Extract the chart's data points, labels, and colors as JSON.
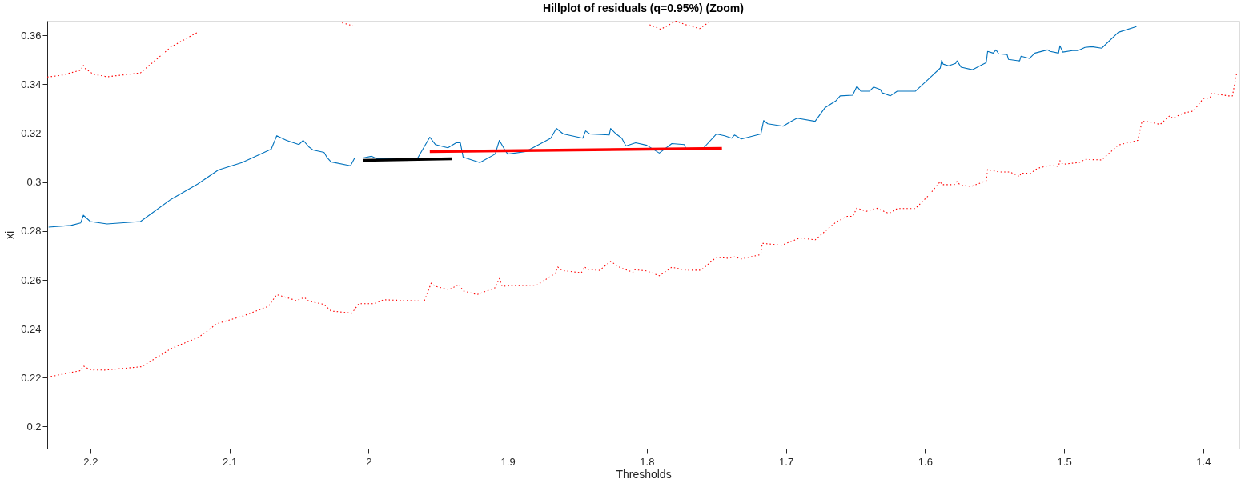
{
  "chart_data": {
    "type": "line",
    "title": "Hillplot of residuals (q=0.95%) (Zoom)",
    "xlabel": "Thresholds",
    "ylabel": "xi",
    "xlim": [
      2.231,
      1.374
    ],
    "ylim": [
      0.191,
      0.366
    ],
    "xticks": [
      2.2,
      2.1,
      2,
      1.9,
      1.8,
      1.7,
      1.6,
      1.5,
      1.4
    ],
    "yticks": [
      0.2,
      0.22,
      0.24,
      0.26,
      0.28,
      0.3,
      0.32,
      0.34,
      0.36
    ],
    "grid": false,
    "marker": "none",
    "series": [
      {
        "color": "#0072bd",
        "line_style": "solid",
        "x": [
          2.23,
          2.214,
          2.207,
          2.205,
          2.2,
          2.188,
          2.164,
          2.142,
          2.123,
          2.108,
          2.091,
          2.07,
          2.066,
          2.059,
          2.05,
          2.047,
          2.043,
          2.04,
          2.032,
          2.03,
          2.027,
          2.013,
          2.01,
          2.004,
          1.998,
          1.994,
          1.965,
          1.956,
          1.952,
          1.943,
          1.937,
          1.934,
          1.932,
          1.92,
          1.909,
          1.906,
          1.902,
          1.9,
          1.887,
          1.869,
          1.865,
          1.86,
          1.846,
          1.844,
          1.841,
          1.827,
          1.826,
          1.822,
          1.818,
          1.815,
          1.808,
          1.8,
          1.791,
          1.782,
          1.773,
          1.772,
          1.76,
          1.75,
          1.744,
          1.739,
          1.737,
          1.732,
          1.718,
          1.716,
          1.713,
          1.702,
          1.697,
          1.692,
          1.679,
          1.672,
          1.664,
          1.661,
          1.652,
          1.649,
          1.646,
          1.64,
          1.637,
          1.632,
          1.631,
          1.625,
          1.62,
          1.607,
          1.597,
          1.589,
          1.588,
          1.587,
          1.583,
          1.578,
          1.577,
          1.574,
          1.566,
          1.556,
          1.555,
          1.551,
          1.549,
          1.547,
          1.541,
          1.54,
          1.532,
          1.531,
          1.525,
          1.521,
          1.512,
          1.51,
          1.504,
          1.503,
          1.501,
          1.494,
          1.49,
          1.485,
          1.48,
          1.473,
          1.461,
          1.448
        ],
        "values": [
          0.2816,
          0.2823,
          0.2833,
          0.2865,
          0.2839,
          0.2829,
          0.2839,
          0.293,
          0.2992,
          0.305,
          0.308,
          0.3135,
          0.319,
          0.3171,
          0.3154,
          0.3171,
          0.3145,
          0.3132,
          0.3122,
          0.3102,
          0.3083,
          0.3067,
          0.3099,
          0.3099,
          0.3106,
          0.3096,
          0.3096,
          0.3184,
          0.3154,
          0.3141,
          0.3161,
          0.3161,
          0.3102,
          0.308,
          0.3115,
          0.3171,
          0.3132,
          0.3115,
          0.3125,
          0.318,
          0.322,
          0.3197,
          0.318,
          0.321,
          0.3197,
          0.3193,
          0.322,
          0.3197,
          0.318,
          0.3148,
          0.3161,
          0.3151,
          0.3119,
          0.3158,
          0.3154,
          0.3138,
          0.3135,
          0.3197,
          0.319,
          0.318,
          0.3193,
          0.3177,
          0.3197,
          0.3252,
          0.3239,
          0.3229,
          0.3246,
          0.3262,
          0.3249,
          0.3304,
          0.3333,
          0.3353,
          0.3356,
          0.3392,
          0.3372,
          0.3372,
          0.3389,
          0.3379,
          0.3366,
          0.3353,
          0.3372,
          0.3372,
          0.3424,
          0.3467,
          0.3499,
          0.3483,
          0.3476,
          0.3486,
          0.3496,
          0.347,
          0.346,
          0.3489,
          0.3535,
          0.3528,
          0.3541,
          0.3525,
          0.3522,
          0.3502,
          0.3496,
          0.3515,
          0.3506,
          0.3528,
          0.3541,
          0.3535,
          0.3528,
          0.3558,
          0.3532,
          0.3538,
          0.3538,
          0.3551,
          0.3554,
          0.3548,
          0.3613,
          0.3636
        ]
      },
      {
        "color": "#ff0000",
        "line_style": "dotted",
        "x": [
          2.231,
          2.221,
          2.207,
          2.205,
          2.204,
          2.198,
          2.188,
          2.164,
          2.142,
          2.122,
          2.1,
          2.019,
          2.011,
          1.99,
          1.798,
          1.79,
          1.779,
          1.772,
          1.762,
          1.754
        ],
        "values": [
          0.343,
          0.3437,
          0.3458,
          0.3478,
          0.3466,
          0.3442,
          0.3431,
          0.3447,
          0.3553,
          0.3616,
          null,
          0.3652,
          0.3639,
          null,
          0.3644,
          0.3625,
          0.3659,
          0.3644,
          0.3628,
          0.3659
        ]
      },
      {
        "color": "#ff0000",
        "line_style": "dotted",
        "x": [
          2.231,
          2.207,
          2.205,
          2.2,
          2.19,
          2.163,
          2.142,
          2.122,
          2.109,
          2.09,
          2.072,
          2.066,
          2.052,
          2.046,
          2.043,
          2.032,
          2.027,
          2.012,
          2.007,
          1.996,
          1.989,
          1.96,
          1.955,
          1.952,
          1.942,
          1.935,
          1.932,
          1.922,
          1.909,
          1.906,
          1.904,
          1.897,
          1.879,
          1.866,
          1.864,
          1.861,
          1.847,
          1.845,
          1.841,
          1.834,
          1.826,
          1.819,
          1.81,
          1.809,
          1.8,
          1.791,
          1.782,
          1.772,
          1.761,
          1.75,
          1.742,
          1.737,
          1.732,
          1.718,
          1.717,
          1.703,
          1.69,
          1.679,
          1.664,
          1.656,
          1.652,
          1.649,
          1.642,
          1.635,
          1.626,
          1.62,
          1.607,
          1.597,
          1.589,
          1.588,
          1.579,
          1.577,
          1.575,
          1.567,
          1.556,
          1.555,
          1.547,
          1.539,
          1.532,
          1.531,
          1.524,
          1.519,
          1.511,
          1.504,
          1.503,
          1.501,
          1.489,
          1.485,
          1.473,
          1.461,
          1.447,
          1.444,
          1.439,
          1.431,
          1.424,
          1.422,
          1.414,
          1.407,
          1.4,
          1.395,
          1.394,
          1.382,
          1.379,
          1.376
        ],
        "values": [
          0.2202,
          0.2229,
          0.2248,
          0.2232,
          0.2231,
          0.2245,
          0.2319,
          0.2366,
          0.2421,
          0.2453,
          0.2492,
          0.254,
          0.2516,
          0.2528,
          0.2513,
          0.25,
          0.2473,
          0.2464,
          0.2503,
          0.2503,
          0.2519,
          0.2513,
          0.2587,
          0.2574,
          0.256,
          0.2582,
          0.2555,
          0.254,
          0.2568,
          0.2606,
          0.2574,
          0.2576,
          0.2579,
          0.2626,
          0.2653,
          0.2639,
          0.2629,
          0.2653,
          0.2642,
          0.2639,
          0.2676,
          0.265,
          0.2631,
          0.2642,
          0.2637,
          0.2617,
          0.2652,
          0.264,
          0.264,
          0.2693,
          0.2689,
          0.2694,
          0.2686,
          0.2704,
          0.275,
          0.2742,
          0.2772,
          0.2764,
          0.2837,
          0.286,
          0.286,
          0.2894,
          0.2881,
          0.2894,
          0.2872,
          0.2892,
          0.2892,
          0.2948,
          0.3003,
          0.299,
          0.299,
          0.3003,
          0.299,
          0.2982,
          0.3006,
          0.3052,
          0.3042,
          0.3042,
          0.3023,
          0.3037,
          0.3037,
          0.3057,
          0.3068,
          0.3065,
          0.3088,
          0.3073,
          0.3081,
          0.3093,
          0.3091,
          0.3152,
          0.3171,
          0.3249,
          0.3247,
          0.3236,
          0.3272,
          0.3262,
          0.3283,
          0.3291,
          0.3342,
          0.3345,
          0.3364,
          0.3353,
          0.3353,
          0.3444
        ]
      },
      {
        "color": "#000000",
        "line_style": "solid",
        "x": [
          2.004,
          1.94
        ],
        "values": [
          0.3089,
          0.3096
        ]
      },
      {
        "color": "#ff0000",
        "line_style": "solid",
        "x": [
          1.956,
          1.746
        ],
        "values": [
          0.3125,
          0.3138
        ]
      }
    ]
  }
}
